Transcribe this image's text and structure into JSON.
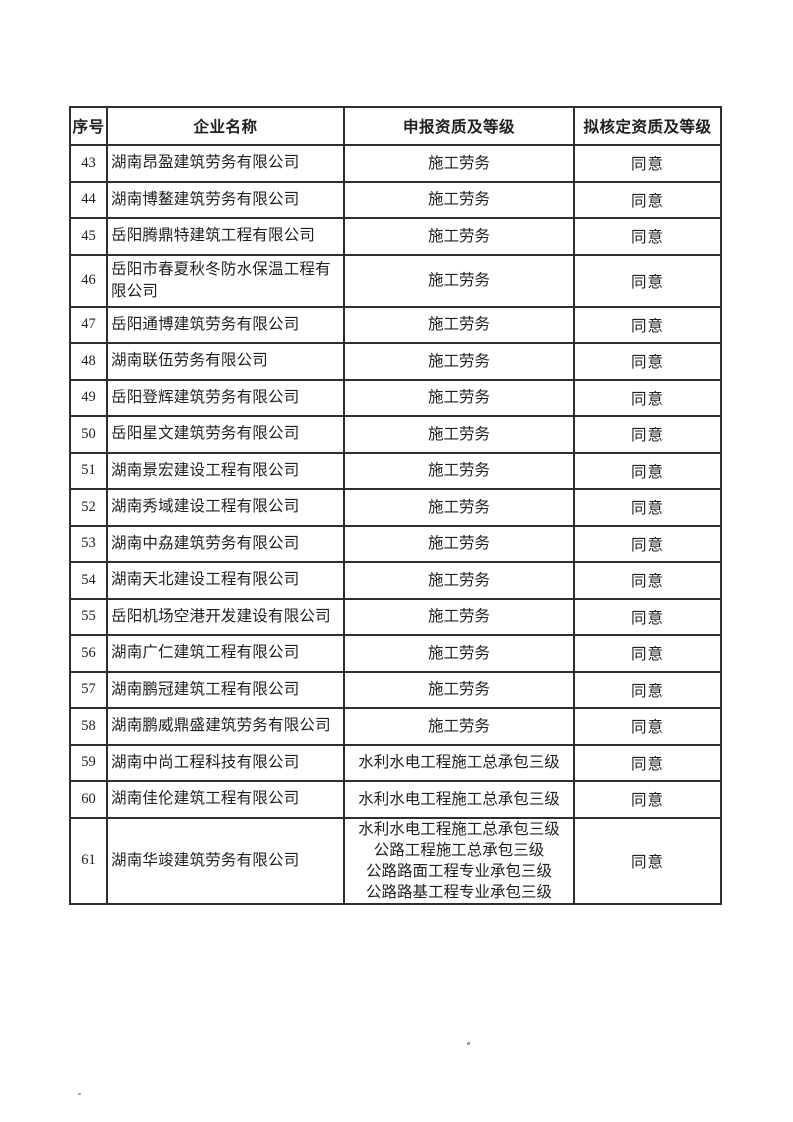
{
  "colors": {
    "page_background": "#ffffff",
    "ink": "#1f1f1f",
    "table_border": "#2e2e2e"
  },
  "table": {
    "headers": [
      {
        "label": "序号"
      },
      {
        "label": "企业名称"
      },
      {
        "label": "申报资质及等级"
      },
      {
        "label": "拟核定资质及等级"
      }
    ],
    "rows": [
      {
        "index": "43",
        "company": "湖南昂盈建筑劳务有限公司",
        "declared": [
          "施工劳务"
        ],
        "approved": "同意"
      },
      {
        "index": "44",
        "company": "湖南博鳌建筑劳务有限公司",
        "declared": [
          "施工劳务"
        ],
        "approved": "同意"
      },
      {
        "index": "45",
        "company": "岳阳腾鼎特建筑工程有限公司",
        "declared": [
          "施工劳务"
        ],
        "approved": "同意"
      },
      {
        "index": "46",
        "company": "岳阳市春夏秋冬防水保温工程有限公司",
        "declared": [
          "施工劳务"
        ],
        "approved": "同意"
      },
      {
        "index": "47",
        "company": "岳阳通博建筑劳务有限公司",
        "declared": [
          "施工劳务"
        ],
        "approved": "同意"
      },
      {
        "index": "48",
        "company": "湖南联伍劳务有限公司",
        "declared": [
          "施工劳务"
        ],
        "approved": "同意"
      },
      {
        "index": "49",
        "company": "岳阳登辉建筑劳务有限公司",
        "declared": [
          "施工劳务"
        ],
        "approved": "同意"
      },
      {
        "index": "50",
        "company": "岳阳星文建筑劳务有限公司",
        "declared": [
          "施工劳务"
        ],
        "approved": "同意"
      },
      {
        "index": "51",
        "company": "湖南景宏建设工程有限公司",
        "declared": [
          "施工劳务"
        ],
        "approved": "同意"
      },
      {
        "index": "52",
        "company": "湖南秀域建设工程有限公司",
        "declared": [
          "施工劳务"
        ],
        "approved": "同意"
      },
      {
        "index": "53",
        "company": "湖南中劦建筑劳务有限公司",
        "declared": [
          "施工劳务"
        ],
        "approved": "同意"
      },
      {
        "index": "54",
        "company": "湖南天北建设工程有限公司",
        "declared": [
          "施工劳务"
        ],
        "approved": "同意"
      },
      {
        "index": "55",
        "company": "岳阳机场空港开发建设有限公司",
        "declared": [
          "施工劳务"
        ],
        "approved": "同意"
      },
      {
        "index": "56",
        "company": "湖南广仁建筑工程有限公司",
        "declared": [
          "施工劳务"
        ],
        "approved": "同意"
      },
      {
        "index": "57",
        "company": "湖南鹏冠建筑工程有限公司",
        "declared": [
          "施工劳务"
        ],
        "approved": "同意"
      },
      {
        "index": "58",
        "company": "湖南鹏威鼎盛建筑劳务有限公司",
        "declared": [
          "施工劳务"
        ],
        "approved": "同意"
      },
      {
        "index": "59",
        "company": "湖南中尚工程科技有限公司",
        "declared": [
          "水利水电工程施工总承包三级"
        ],
        "approved": "同意"
      },
      {
        "index": "60",
        "company": "湖南佳伦建筑工程有限公司",
        "declared": [
          "水利水电工程施工总承包三级"
        ],
        "approved": "同意"
      },
      {
        "index": "61",
        "company": "湖南华竣建筑劳务有限公司",
        "declared": [
          "水利水电工程施工总承包三级",
          "公路工程施工总承包三级",
          "公路路面工程专业承包三级",
          "公路路基工程专业承包三级"
        ],
        "approved": "同意"
      }
    ]
  }
}
